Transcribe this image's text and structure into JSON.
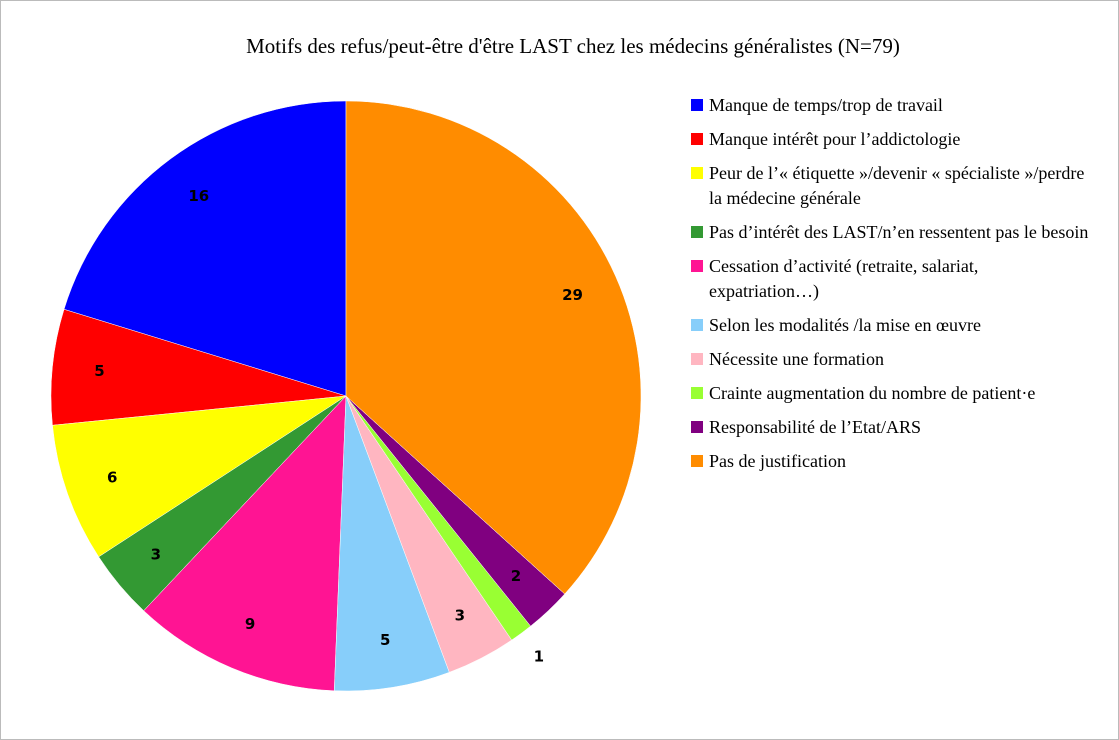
{
  "chart_data": {
    "type": "pie",
    "title": "Motifs des refus/peut-être d'être LAST chez les médecins généralistes (N=79)",
    "categories": [
      "Manque de temps/trop de travail",
      "Manque intérêt pour l’addictologie",
      "Peur de l’« étiquette »/devenir « spécialiste »/perdre la médecine générale",
      "Pas d’intérêt des LAST/n’en ressentent pas le besoin",
      "Cessation d’activité (retraite, salariat, expatriation…)",
      "Selon les modalités /la mise en œuvre",
      "Nécessite une formation",
      "Crainte augmentation du nombre de patient·e",
      "Responsabilité de l’Etat/ARS",
      "Pas de justification"
    ],
    "values": [
      16,
      5,
      6,
      3,
      9,
      5,
      3,
      1,
      2,
      29
    ],
    "colors": [
      "#0000ff",
      "#ff0000",
      "#ffff00",
      "#339933",
      "#ff1493",
      "#87cefa",
      "#ffb6c1",
      "#99ff33",
      "#800080",
      "#ff8c00"
    ],
    "legend": "right"
  }
}
